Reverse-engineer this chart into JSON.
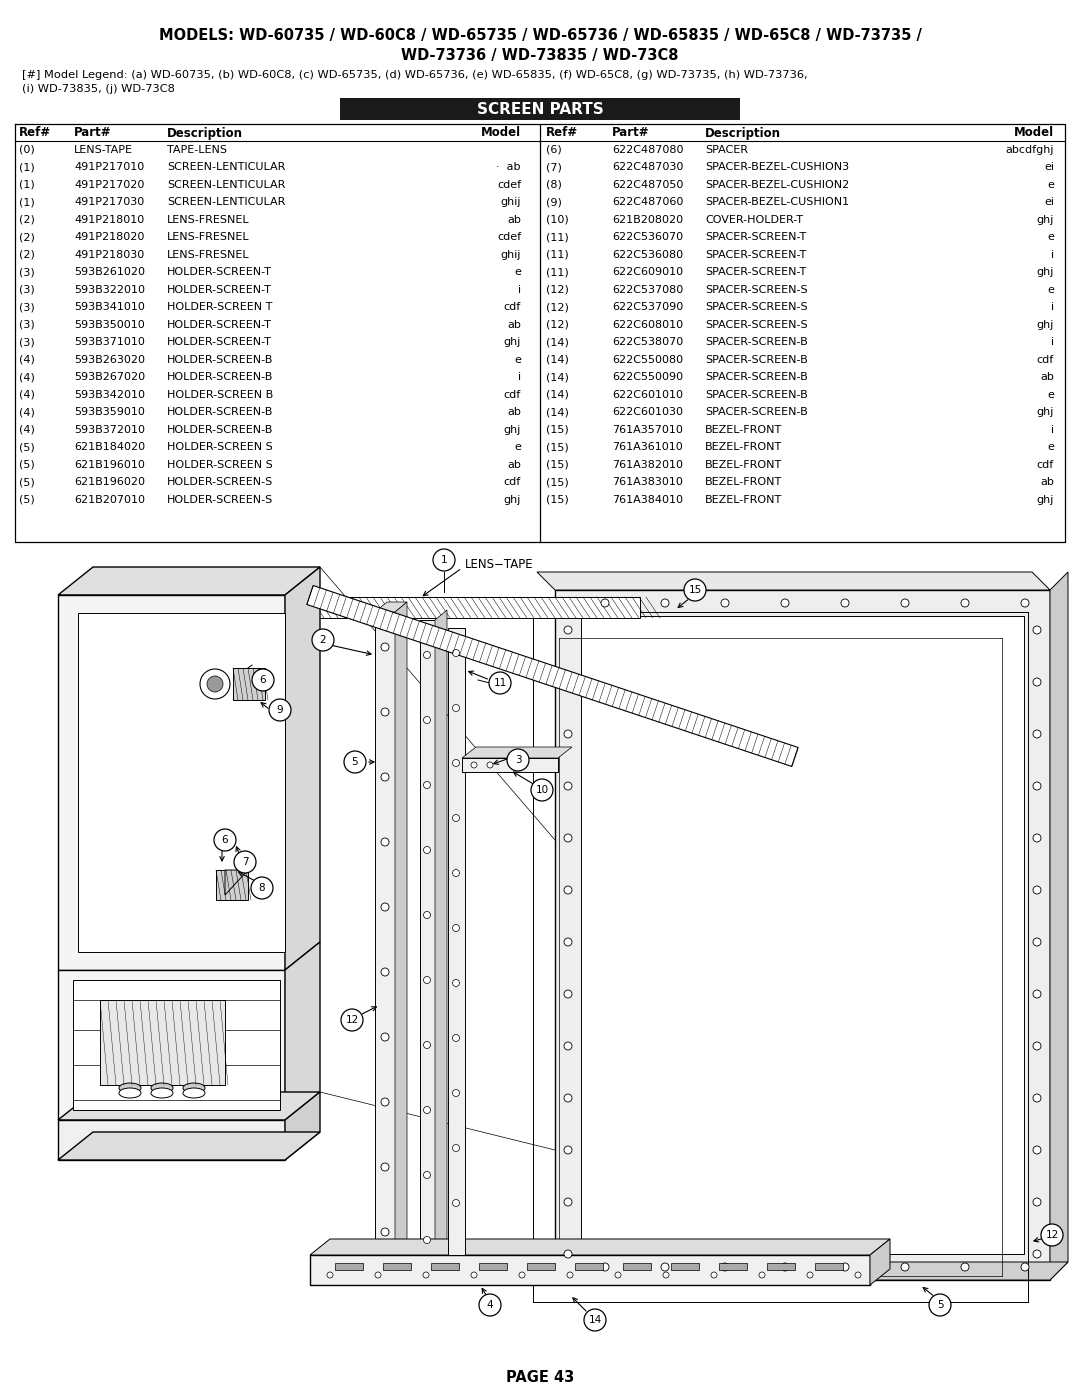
{
  "title_line1": "MODELS: WD-60735 / WD-60C8 / WD-65735 / WD-65736 / WD-65835 / WD-65C8 / WD-73735 /",
  "title_line2": "WD-73736 / WD-73835 / WD-73C8",
  "legend_line": "[#] Model Legend: (a) WD-60735, (b) WD-60C8, (c) WD-65735, (d) WD-65736, (e) WD-65835, (f) WD-65C8, (g) WD-73735, (h) WD-73736,",
  "legend_line2": "(i) WD-73835, (j) WD-73C8",
  "section_title": "SCREEN PARTS",
  "left_table_headers": [
    "Ref#",
    "Part#",
    "Description",
    "Model"
  ],
  "left_table_data": [
    [
      "(0)",
      "LENS-TAPE",
      "TAPE-LENS",
      ""
    ],
    [
      "(1)",
      "491P217010",
      "SCREEN-LENTICULAR",
      "·  ab"
    ],
    [
      "(1)",
      "491P217020",
      "SCREEN-LENTICULAR",
      "cdef"
    ],
    [
      "(1)",
      "491P217030",
      "SCREEN-LENTICULAR",
      "ghij"
    ],
    [
      "(2)",
      "491P218010",
      "LENS-FRESNEL",
      "ab"
    ],
    [
      "(2)",
      "491P218020",
      "LENS-FRESNEL",
      "cdef"
    ],
    [
      "(2)",
      "491P218030",
      "LENS-FRESNEL",
      "ghij"
    ],
    [
      "(3)",
      "593B261020",
      "HOLDER-SCREEN-T",
      "e"
    ],
    [
      "(3)",
      "593B322010",
      "HOLDER-SCREEN-T",
      "i"
    ],
    [
      "(3)",
      "593B341010",
      "HOLDER-SCREEN T",
      "cdf"
    ],
    [
      "(3)",
      "593B350010",
      "HOLDER-SCREEN-T",
      "ab"
    ],
    [
      "(3)",
      "593B371010",
      "HOLDER-SCREEN-T",
      "ghj"
    ],
    [
      "(4)",
      "593B263020",
      "HOLDER-SCREEN-B",
      "e"
    ],
    [
      "(4)",
      "593B267020",
      "HOLDER-SCREEN-B",
      "i"
    ],
    [
      "(4)",
      "593B342010",
      "HOLDER-SCREEN B",
      "cdf"
    ],
    [
      "(4)",
      "593B359010",
      "HOLDER-SCREEN-B",
      "ab"
    ],
    [
      "(4)",
      "593B372010",
      "HOLDER-SCREEN-B",
      "ghj"
    ],
    [
      "(5)",
      "621B184020",
      "HOLDER-SCREEN S",
      "e"
    ],
    [
      "(5)",
      "621B196010",
      "HOLDER-SCREEN S",
      "ab"
    ],
    [
      "(5)",
      "621B196020",
      "HOLDER-SCREEN-S",
      "cdf"
    ],
    [
      "(5)",
      "621B207010",
      "HOLDER-SCREEN-S",
      "ghj"
    ]
  ],
  "right_table_headers": [
    "Ref#",
    "Part#",
    "Description",
    "Model"
  ],
  "right_table_data": [
    [
      "(6)",
      "622C487080",
      "SPACER",
      "abcdfghj"
    ],
    [
      "(7)",
      "622C487030",
      "SPACER-BEZEL-CUSHION3",
      "ei"
    ],
    [
      "(8)",
      "622C487050",
      "SPACER-BEZEL-CUSHION2",
      "e"
    ],
    [
      "(9)",
      "622C487060",
      "SPACER-BEZEL-CUSHION1",
      "ei"
    ],
    [
      "(10)",
      "621B208020",
      "COVER-HOLDER-T",
      "ghj"
    ],
    [
      "(11)",
      "622C536070",
      "SPACER-SCREEN-T",
      "e"
    ],
    [
      "(11)",
      "622C536080",
      "SPACER-SCREEN-T",
      "i"
    ],
    [
      "(11)",
      "622C609010",
      "SPACER-SCREEN-T",
      "ghj"
    ],
    [
      "(12)",
      "622C537080",
      "SPACER-SCREEN-S",
      "e"
    ],
    [
      "(12)",
      "622C537090",
      "SPACER-SCREEN-S",
      "i"
    ],
    [
      "(12)",
      "622C608010",
      "SPACER-SCREEN-S",
      "ghj"
    ],
    [
      "(14)",
      "622C538070",
      "SPACER-SCREEN-B",
      "i"
    ],
    [
      "(14)",
      "622C550080",
      "SPACER-SCREEN-B",
      "cdf"
    ],
    [
      "(14)",
      "622C550090",
      "SPACER-SCREEN-B",
      "ab"
    ],
    [
      "(14)",
      "622C601010",
      "SPACER-SCREEN-B",
      "e"
    ],
    [
      "(14)",
      "622C601030",
      "SPACER-SCREEN-B",
      "ghj"
    ],
    [
      "(15)",
      "761A357010",
      "BEZEL-FRONT",
      "i"
    ],
    [
      "(15)",
      "761A361010",
      "BEZEL-FRONT",
      "e"
    ],
    [
      "(15)",
      "761A382010",
      "BEZEL-FRONT",
      "cdf"
    ],
    [
      "(15)",
      "761A383010",
      "BEZEL-FRONT",
      "ab"
    ],
    [
      "(15)",
      "761A384010",
      "BEZEL-FRONT",
      "ghj"
    ]
  ],
  "page_number": "PAGE 43",
  "bg_color": "#ffffff",
  "text_color": "#000000",
  "section_bg": "#1a1a1a",
  "section_text": "#ffffff",
  "table_border_color": "#000000"
}
